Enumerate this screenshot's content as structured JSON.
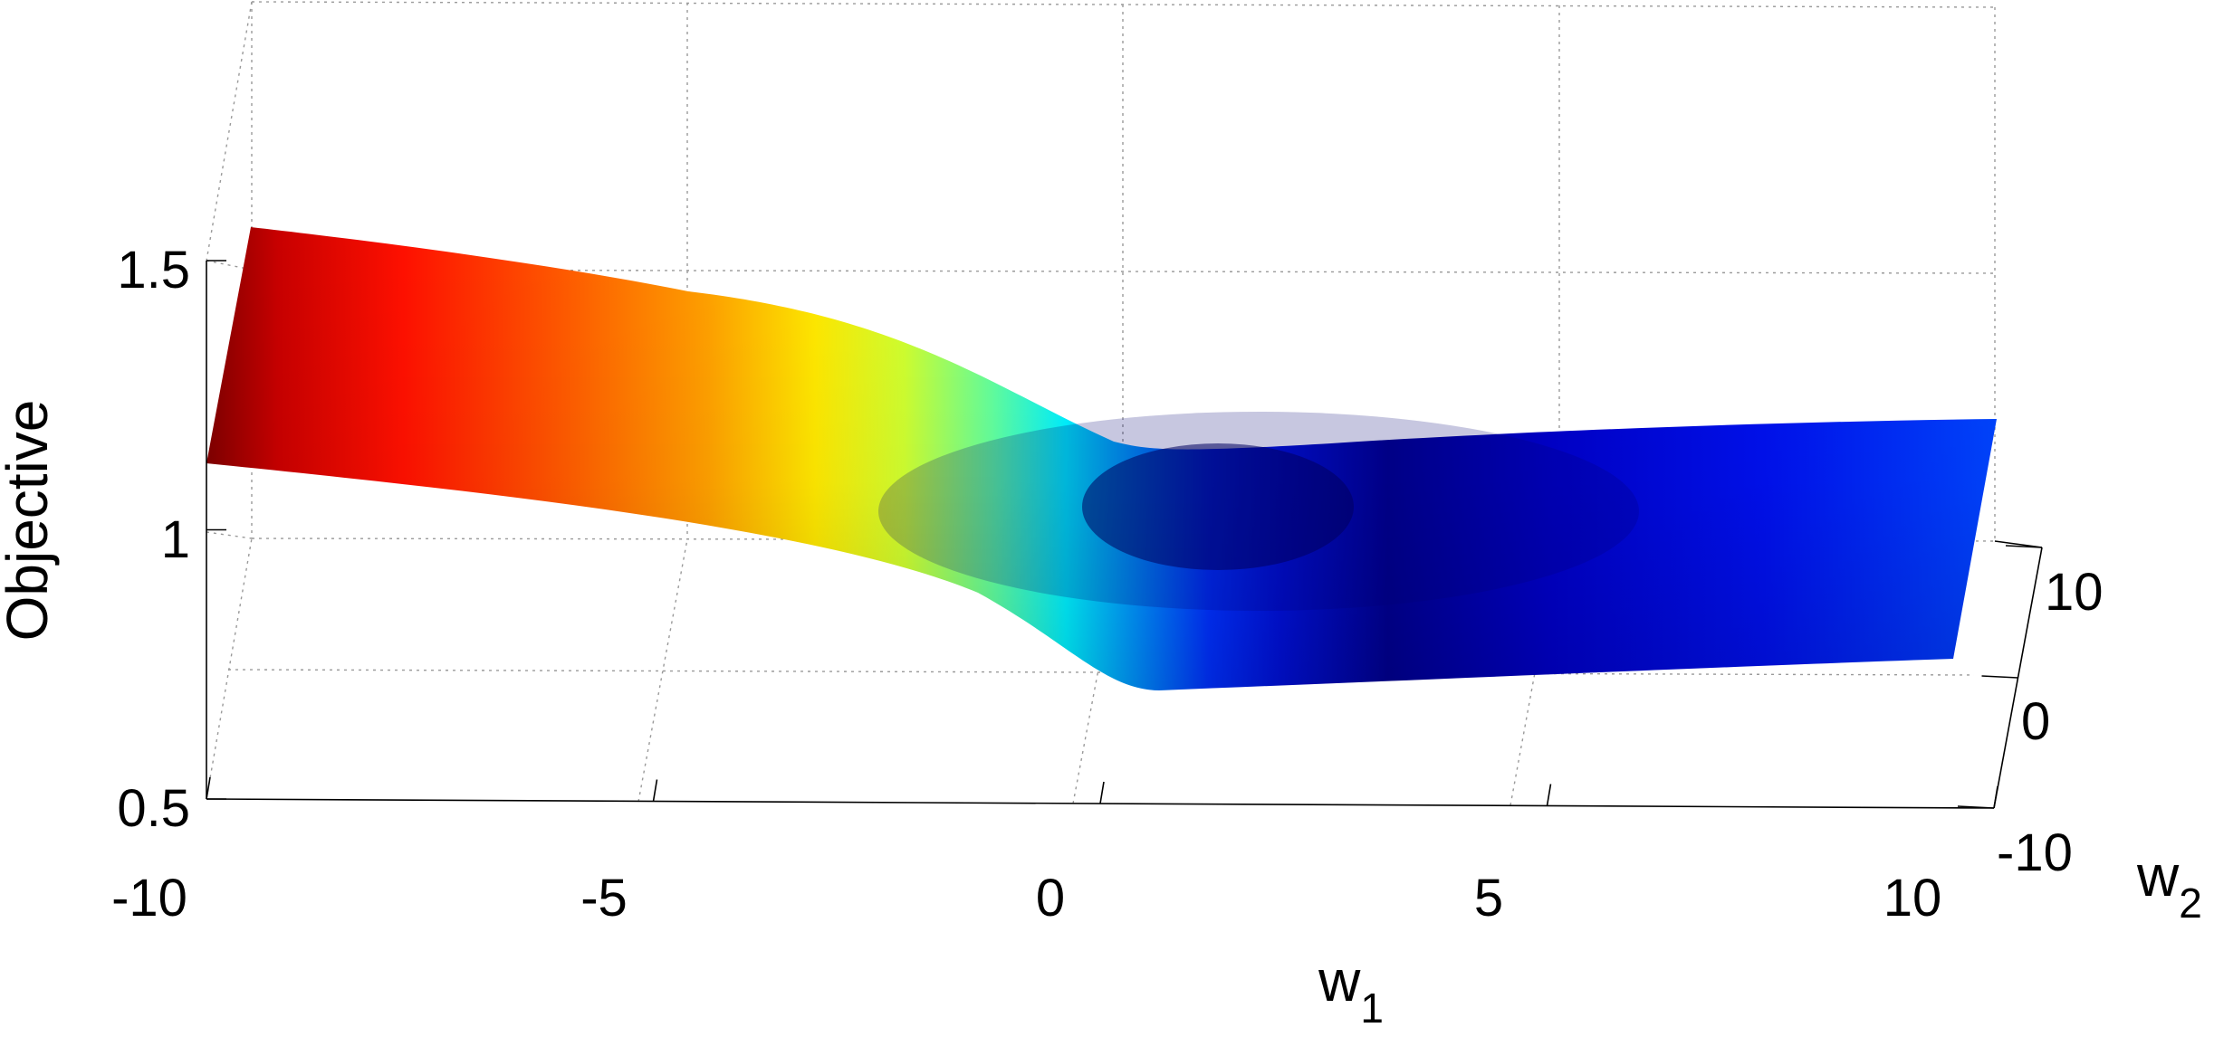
{
  "chart_data": {
    "type": "surface",
    "title": "",
    "xlabel": "w",
    "xlabel_sub": "1",
    "ylabel": "w",
    "ylabel_sub": "2",
    "zlabel": "Objective",
    "xlim": [
      -10,
      10
    ],
    "ylim": [
      -10,
      10
    ],
    "zlim": [
      0.5,
      1.75
    ],
    "x_ticks": [
      "-10",
      "-5",
      "0",
      "5",
      "10"
    ],
    "y_ticks": [
      "-10",
      "0",
      "10"
    ],
    "z_ticks": [
      "0.5",
      "1",
      "1.5"
    ],
    "colormap": "jet",
    "grid": true,
    "surface": {
      "w1": [
        -10,
        -8,
        -6,
        -4,
        -2,
        0,
        2,
        4,
        6,
        8,
        10
      ],
      "front_edge_w2_minus10": [
        1.13,
        1.09,
        1.04,
        0.98,
        0.9,
        0.75,
        0.72,
        0.73,
        0.74,
        0.75,
        0.76
      ],
      "back_edge_w2_plus10": [
        1.57,
        1.53,
        1.47,
        1.41,
        1.31,
        1.16,
        1.13,
        1.17,
        1.19,
        1.2,
        1.21
      ],
      "minimum": {
        "w1": 2,
        "w2": 0,
        "objective": 0.93
      }
    }
  }
}
